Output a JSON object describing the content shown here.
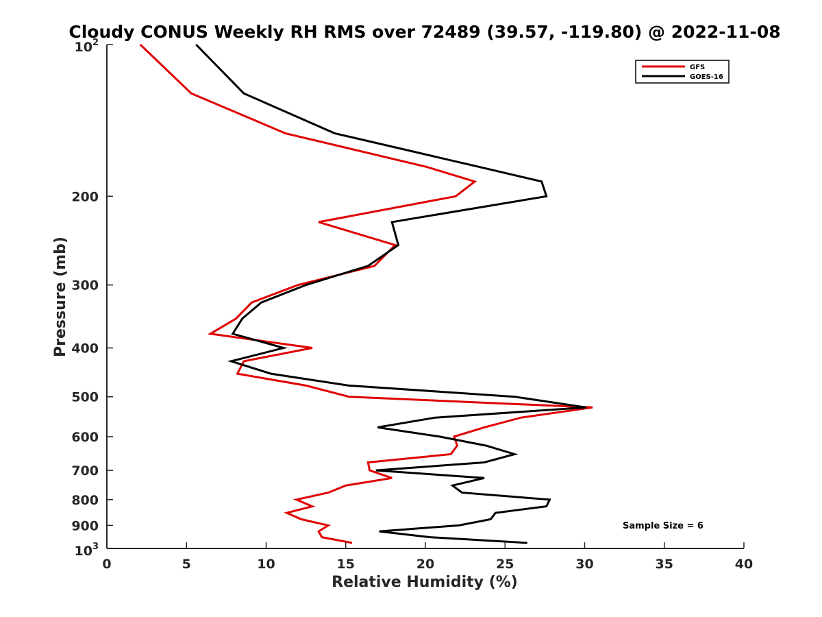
{
  "chart_data": {
    "type": "line",
    "title": "Cloudy CONUS Weekly RH RMS over 72489 (39.57, -119.80) @ 2022-11-08",
    "xlabel": "Relative Humidity (%)",
    "ylabel": "Pressure (mb)",
    "xlim": [
      0,
      40
    ],
    "ylim": [
      100,
      1000
    ],
    "y_scale": "log",
    "y_reversed": true,
    "x_ticks": [
      "0",
      "5",
      "10",
      "15",
      "20",
      "25",
      "30",
      "35",
      "40"
    ],
    "y_ticks": [
      {
        "value": 100,
        "base": "10",
        "exp": "2"
      },
      {
        "value": 200,
        "label": "200"
      },
      {
        "value": 300,
        "label": "300"
      },
      {
        "value": 400,
        "label": "400"
      },
      {
        "value": 500,
        "label": "500"
      },
      {
        "value": 600,
        "label": "600"
      },
      {
        "value": 700,
        "label": "700"
      },
      {
        "value": 800,
        "label": "800"
      },
      {
        "value": 900,
        "label": "900"
      },
      {
        "value": 1000,
        "base": "10",
        "exp": "3"
      }
    ],
    "grid": false,
    "legend_position": "top-right",
    "annotation": "Sample Size = 6",
    "series": [
      {
        "name": "GFS",
        "color": "#e00000",
        "points": [
          [
            2.1,
            100
          ],
          [
            5.3,
            125
          ],
          [
            11.2,
            150
          ],
          [
            20.1,
            175
          ],
          [
            23.1,
            187
          ],
          [
            21.9,
            200
          ],
          [
            13.3,
            225
          ],
          [
            18.1,
            250
          ],
          [
            16.8,
            275
          ],
          [
            12.0,
            300
          ],
          [
            9.1,
            325
          ],
          [
            8.1,
            350
          ],
          [
            6.5,
            375
          ],
          [
            12.9,
            400
          ],
          [
            8.6,
            425
          ],
          [
            8.2,
            450
          ],
          [
            12.5,
            475
          ],
          [
            15.2,
            500
          ],
          [
            30.5,
            525
          ],
          [
            26.0,
            550
          ],
          [
            23.7,
            575
          ],
          [
            21.8,
            600
          ],
          [
            22.0,
            625
          ],
          [
            21.6,
            650
          ],
          [
            16.4,
            675
          ],
          [
            16.5,
            700
          ],
          [
            17.9,
            725
          ],
          [
            15.0,
            750
          ],
          [
            13.9,
            775
          ],
          [
            11.9,
            800
          ],
          [
            12.9,
            825
          ],
          [
            11.3,
            850
          ],
          [
            12.2,
            875
          ],
          [
            13.9,
            900
          ],
          [
            13.3,
            925
          ],
          [
            13.5,
            950
          ],
          [
            15.4,
            975
          ]
        ]
      },
      {
        "name": "GOES-16",
        "color": "#000000",
        "points": [
          [
            5.6,
            100
          ],
          [
            8.6,
            125
          ],
          [
            14.3,
            150
          ],
          [
            23.4,
            175
          ],
          [
            27.3,
            187
          ],
          [
            27.6,
            200
          ],
          [
            17.9,
            225
          ],
          [
            18.3,
            250
          ],
          [
            16.4,
            275
          ],
          [
            12.5,
            300
          ],
          [
            9.7,
            325
          ],
          [
            8.5,
            350
          ],
          [
            7.9,
            375
          ],
          [
            11.1,
            400
          ],
          [
            7.8,
            425
          ],
          [
            10.3,
            450
          ],
          [
            15.2,
            475
          ],
          [
            25.6,
            500
          ],
          [
            30.1,
            525
          ],
          [
            20.6,
            550
          ],
          [
            17.0,
            575
          ],
          [
            20.9,
            600
          ],
          [
            23.8,
            625
          ],
          [
            25.6,
            650
          ],
          [
            23.7,
            675
          ],
          [
            16.9,
            700
          ],
          [
            23.7,
            725
          ],
          [
            21.7,
            750
          ],
          [
            22.3,
            775
          ],
          [
            27.8,
            800
          ],
          [
            27.6,
            825
          ],
          [
            24.4,
            850
          ],
          [
            24.1,
            875
          ],
          [
            22.1,
            900
          ],
          [
            17.1,
            925
          ],
          [
            20.3,
            950
          ],
          [
            26.4,
            975
          ]
        ]
      }
    ]
  }
}
